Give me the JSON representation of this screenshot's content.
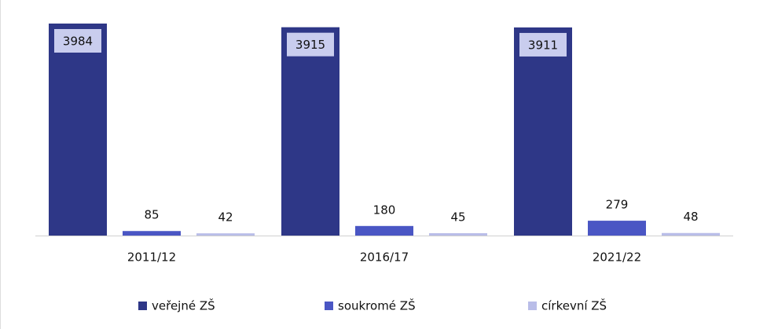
{
  "chart_data": {
    "type": "bar",
    "categories": [
      "2011/12",
      "2016/17",
      "2021/22"
    ],
    "series": [
      {
        "name": "veřejné ZŠ",
        "color": "#2e3787",
        "values": [
          3984,
          3915,
          3911
        ]
      },
      {
        "name": "soukromé ZŠ",
        "color": "#4a56c4",
        "values": [
          85,
          180,
          279
        ]
      },
      {
        "name": "církevní ZŠ",
        "color": "#b9bde8",
        "values": [
          42,
          45,
          48
        ]
      }
    ],
    "legend": "bottom"
  }
}
